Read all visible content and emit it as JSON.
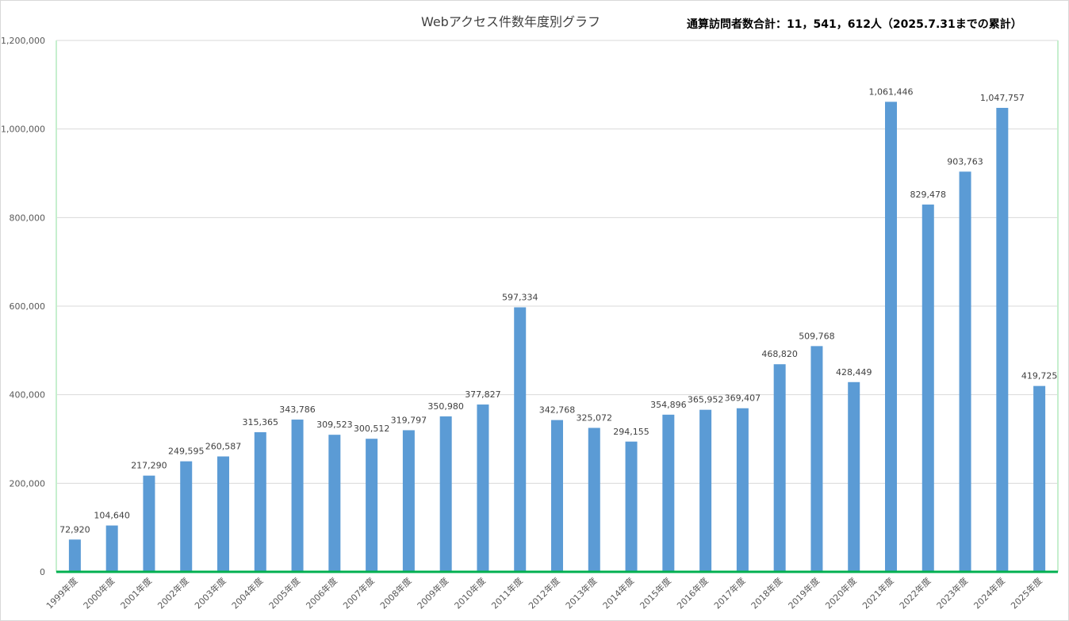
{
  "chart_data": {
    "type": "bar",
    "title": "Webアクセス件数年度別グラフ",
    "note": "通算訪問者数合計：11，541，612人（2025.7.31までの累計）",
    "xlabel": "",
    "ylabel": "",
    "ylim": [
      0,
      1200000
    ],
    "yticks": [
      0,
      200000,
      400000,
      600000,
      800000,
      1000000,
      1200000
    ],
    "ytick_labels": [
      "0",
      "200,000",
      "400,000",
      "600,000",
      "800,000",
      "1,000,000",
      "1,200,000"
    ],
    "grid": true,
    "legend": "none",
    "bar_color": "#5b9bd5",
    "categories": [
      "1999年度",
      "2000年度",
      "2001年度",
      "2002年度",
      "2003年度",
      "2004年度",
      "2005年度",
      "2006年度",
      "2007年度",
      "2008年度",
      "2009年度",
      "2010年度",
      "2011年度",
      "2012年度",
      "2013年度",
      "2014年度",
      "2015年度",
      "2016年度",
      "2017年度",
      "2018年度",
      "2019年度",
      "2020年度",
      "2021年度",
      "2022年度",
      "2023年度",
      "2024年度",
      "2025年度"
    ],
    "values": [
      72920,
      104640,
      217290,
      249595,
      260587,
      315365,
      343786,
      309523,
      300512,
      319797,
      350980,
      377827,
      597334,
      342768,
      325072,
      294155,
      354896,
      365952,
      369407,
      468820,
      509768,
      428449,
      1061446,
      829478,
      903763,
      1047757,
      419725
    ],
    "value_labels": [
      "72,920",
      "104,640",
      "217,290",
      "249,595",
      "260,587",
      "315,365",
      "343,786",
      "309,523",
      "300,512",
      "319,797",
      "350,980",
      "377,827",
      "597,334",
      "342,768",
      "325,072",
      "294,155",
      "354,896",
      "365,952",
      "369,407",
      "468,820",
      "509,768",
      "428,449",
      "1,061,446",
      "829,478",
      "903,763",
      "1,047,757",
      "419,725"
    ]
  }
}
